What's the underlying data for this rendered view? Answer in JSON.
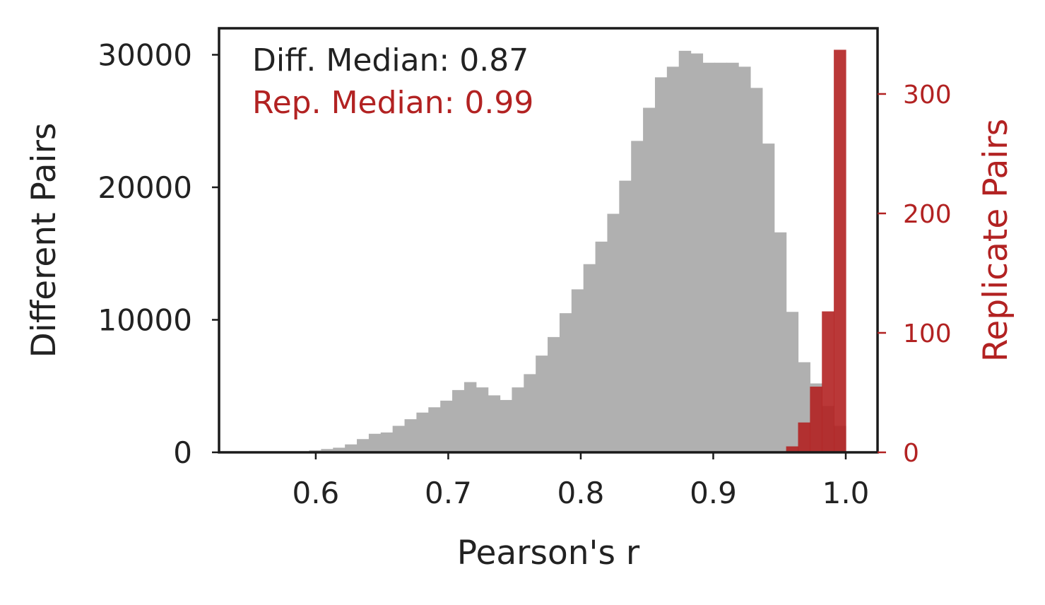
{
  "chart_data": {
    "type": "histogram",
    "xlabel": "Pearson's r",
    "ylabel_left": "Different Pairs",
    "ylabel_right": "Replicate Pairs",
    "xlim": [
      0.527,
      1.024
    ],
    "ylim_left": [
      0,
      32000
    ],
    "ylim_right": [
      0,
      355
    ],
    "x_ticks": [
      0.6,
      0.7,
      0.8,
      0.9,
      1.0
    ],
    "x_tick_labels": [
      "0.6",
      "0.7",
      "0.8",
      "0.9",
      "1.0"
    ],
    "y_left_ticks": [
      0,
      10000,
      20000,
      30000
    ],
    "y_left_tick_labels": [
      "0",
      "10000",
      "20000",
      "30000"
    ],
    "y_right_ticks": [
      0,
      100,
      200,
      300
    ],
    "y_right_tick_labels": [
      "0",
      "100",
      "200",
      "300"
    ],
    "annotations": [
      {
        "text": "Diff. Median: 0.87",
        "color": "#222222"
      },
      {
        "text": "Rep. Median: 0.99",
        "color": "#b22222"
      }
    ],
    "grid": false,
    "colors": {
      "different": "#b0b0b0",
      "replicate": "#b22222"
    },
    "series": [
      {
        "axis": "left",
        "bins": [
          [
            0.577,
            0.586,
            50
          ],
          [
            0.586,
            0.595,
            80
          ],
          [
            0.595,
            0.604,
            150
          ],
          [
            0.604,
            0.613,
            250
          ],
          [
            0.613,
            0.622,
            350
          ],
          [
            0.622,
            0.631,
            600
          ],
          [
            0.631,
            0.64,
            1000
          ],
          [
            0.64,
            0.649,
            1400
          ],
          [
            0.649,
            0.658,
            1500
          ],
          [
            0.658,
            0.667,
            2000
          ],
          [
            0.667,
            0.676,
            2500
          ],
          [
            0.676,
            0.685,
            3000
          ],
          [
            0.685,
            0.694,
            3400
          ],
          [
            0.694,
            0.703,
            3900
          ],
          [
            0.703,
            0.712,
            4700
          ],
          [
            0.712,
            0.721,
            5300
          ],
          [
            0.721,
            0.73,
            4900
          ],
          [
            0.73,
            0.739,
            4300
          ],
          [
            0.739,
            0.748,
            3950
          ],
          [
            0.748,
            0.757,
            4900
          ],
          [
            0.757,
            0.766,
            5900
          ],
          [
            0.766,
            0.775,
            7300
          ],
          [
            0.775,
            0.784,
            8700
          ],
          [
            0.784,
            0.793,
            10500
          ],
          [
            0.793,
            0.802,
            12300
          ],
          [
            0.802,
            0.811,
            14200
          ],
          [
            0.811,
            0.82,
            15900
          ],
          [
            0.82,
            0.829,
            18000
          ],
          [
            0.829,
            0.838,
            20500
          ],
          [
            0.838,
            0.847,
            23500
          ],
          [
            0.847,
            0.856,
            26000
          ],
          [
            0.856,
            0.865,
            28300
          ],
          [
            0.865,
            0.874,
            29100
          ],
          [
            0.874,
            0.883,
            30300
          ],
          [
            0.883,
            0.892,
            30100
          ],
          [
            0.892,
            0.901,
            29400
          ],
          [
            0.901,
            0.91,
            29400
          ],
          [
            0.91,
            0.919,
            29400
          ],
          [
            0.919,
            0.928,
            29100
          ],
          [
            0.928,
            0.937,
            27500
          ],
          [
            0.937,
            0.946,
            23300
          ],
          [
            0.946,
            0.955,
            16600
          ],
          [
            0.955,
            0.964,
            10600
          ],
          [
            0.964,
            0.973,
            6800
          ],
          [
            0.973,
            0.982,
            5200
          ],
          [
            0.982,
            0.991,
            3500
          ],
          [
            0.991,
            1.0,
            2000
          ]
        ]
      },
      {
        "axis": "right",
        "bins": [
          [
            0.955,
            0.964,
            5
          ],
          [
            0.964,
            0.973,
            25
          ],
          [
            0.973,
            0.982,
            55
          ],
          [
            0.982,
            0.991,
            118
          ],
          [
            0.991,
            1.0,
            337
          ]
        ]
      }
    ]
  }
}
